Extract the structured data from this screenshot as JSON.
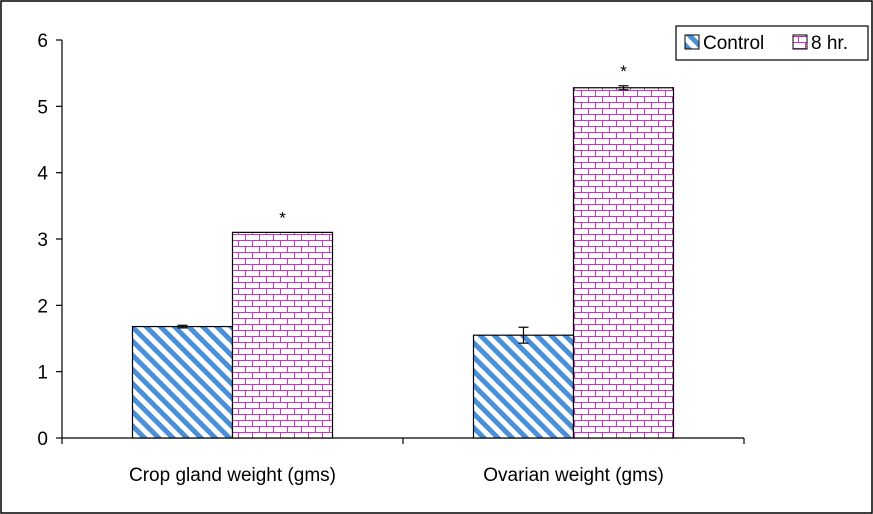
{
  "chart_data": {
    "type": "bar",
    "categories": [
      "Crop gland weight (gms)",
      "Ovarian weight (gms)"
    ],
    "series": [
      {
        "name": "Control",
        "values": [
          1.68,
          1.55
        ],
        "errors": [
          0.02,
          0.12
        ],
        "significance": [
          "",
          ""
        ],
        "color": "#4a90d9",
        "pattern": "diagonal-stripes"
      },
      {
        "name": "8 hr.",
        "values": [
          3.1,
          5.28
        ],
        "errors": [
          0.0,
          0.03
        ],
        "significance": [
          "*",
          "*"
        ],
        "color": "#cc33cc",
        "pattern": "brick"
      }
    ],
    "ylim": [
      0,
      6
    ],
    "yticks": [
      "0",
      "1",
      "2",
      "3",
      "4",
      "5",
      "6"
    ],
    "xlabel": "",
    "ylabel": "",
    "title": "",
    "grid": false,
    "legend_position": "top-right"
  }
}
